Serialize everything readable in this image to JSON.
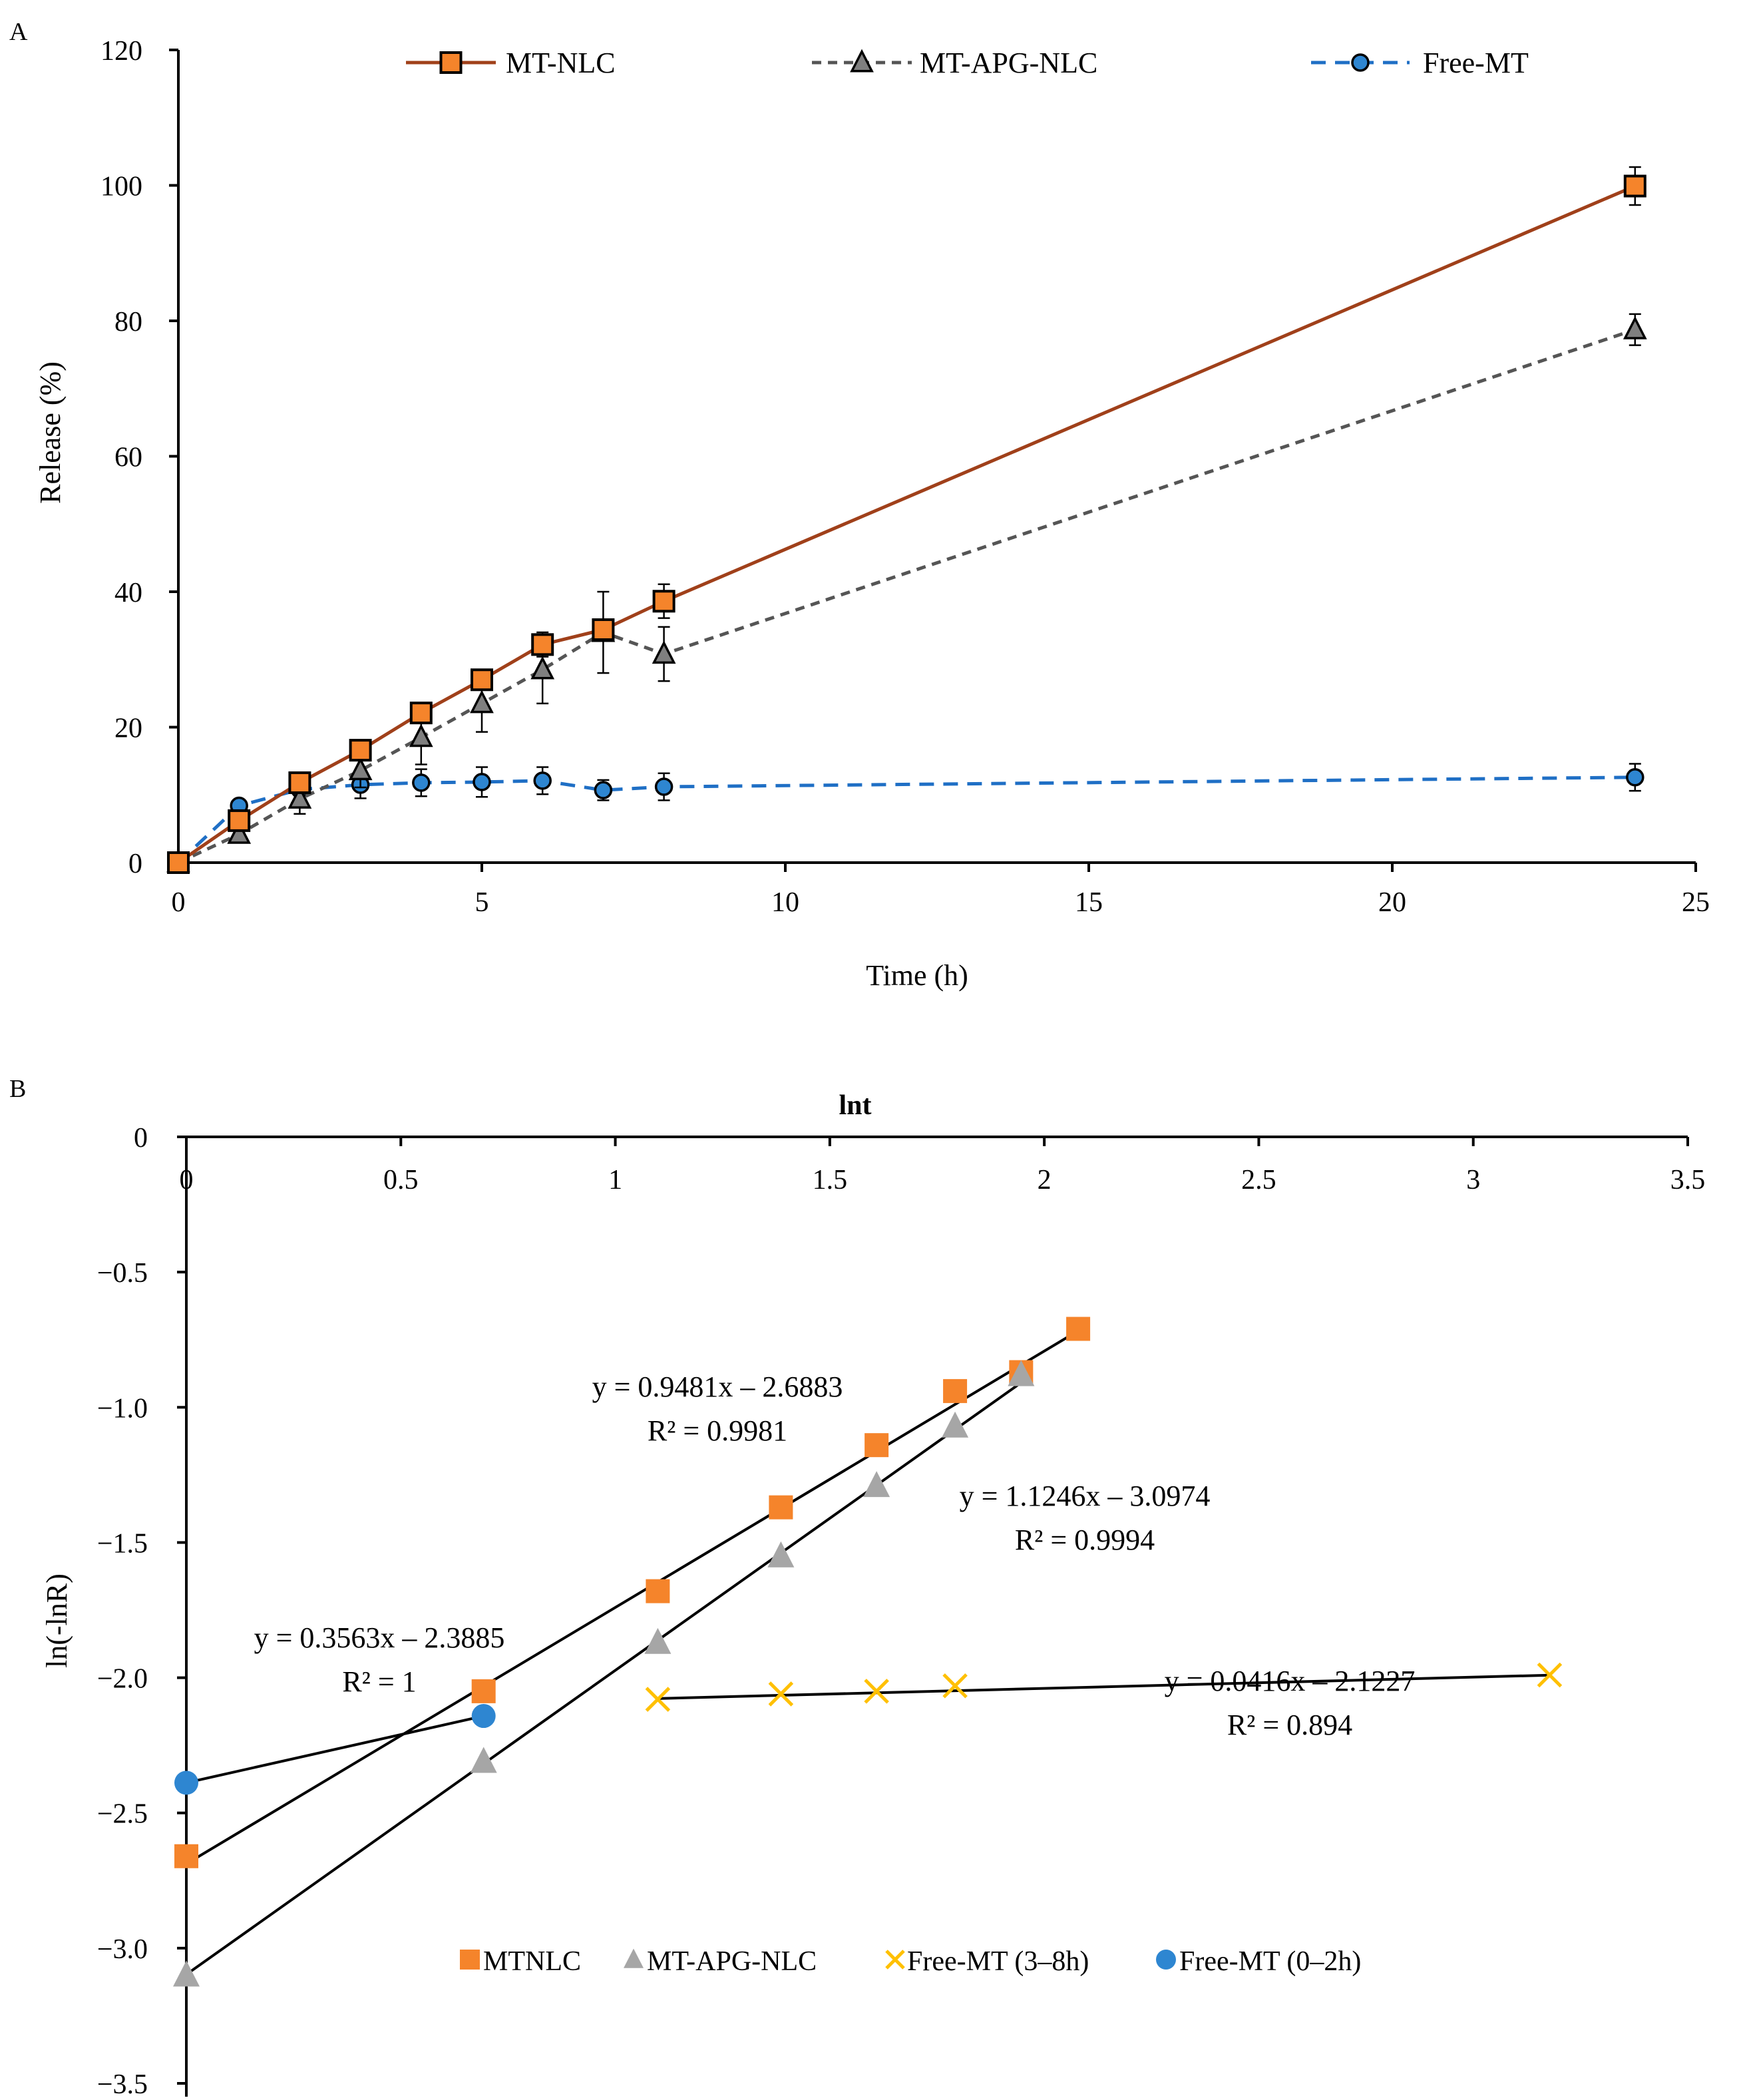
{
  "panels": {
    "a": {
      "label": "A"
    },
    "b": {
      "label": "B"
    }
  },
  "colors": {
    "mt_nlc_line": "#A0401A",
    "mt_nlc_marker": "#F5842B",
    "mt_apg_nlc_line": "#555555",
    "mt_apg_nlc_marker": "#7F7F7F",
    "free_mt_line": "#1F6FC5",
    "free_mt_marker": "#2E86D1",
    "b_mtnlc": "#F5842B",
    "b_apg": "#A6A6A6",
    "b_free_38": "#FFC000",
    "b_free_02": "#2E86D1",
    "axis": "#000000"
  },
  "chart_data": [
    {
      "type": "line",
      "title": "",
      "xlabel": "Time (h)",
      "ylabel": "Release (%)",
      "xlim": [
        0,
        25
      ],
      "ylim": [
        0,
        120
      ],
      "xticks": [
        "0",
        "5",
        "10",
        "15",
        "20",
        "25"
      ],
      "yticks": [
        "0",
        "20",
        "40",
        "60",
        "80",
        "100",
        "120"
      ],
      "legend_position": "top",
      "series": [
        {
          "name": "MT-NLC",
          "marker": "square",
          "style": "solid",
          "x": [
            0,
            1,
            2,
            3,
            4,
            5,
            6,
            7,
            8,
            24
          ],
          "y": [
            0,
            6.2,
            11.8,
            16.6,
            22.1,
            27.0,
            32.2,
            34.4,
            38.6,
            99.9
          ],
          "err": [
            0,
            1.0,
            1.0,
            1.2,
            1.5,
            1.0,
            1.8,
            1.5,
            2.5,
            2.8
          ]
        },
        {
          "name": "MT-APG-NLC",
          "marker": "triangle",
          "style": "dashed",
          "x": [
            0,
            1,
            2,
            3,
            4,
            5,
            6,
            7,
            8,
            24
          ],
          "y": [
            0,
            4.2,
            9.4,
            13.6,
            18.5,
            23.5,
            28.5,
            34.0,
            30.8,
            78.7
          ],
          "err": [
            0,
            1.0,
            2.2,
            2.5,
            4.0,
            4.2,
            5.0,
            6.0,
            4.0,
            2.3
          ]
        },
        {
          "name": "Free-MT",
          "marker": "circle",
          "style": "dashed",
          "x": [
            0,
            1,
            2,
            3,
            4,
            5,
            6,
            7,
            8,
            24
          ],
          "y": [
            0,
            8.4,
            10.8,
            11.5,
            11.8,
            11.9,
            12.1,
            10.7,
            11.2,
            12.6
          ],
          "err": [
            0,
            0.8,
            0.8,
            2.0,
            2.0,
            2.2,
            2.0,
            1.5,
            2.0,
            2.0
          ]
        }
      ]
    },
    {
      "type": "scatter",
      "title": "",
      "xlabel": "lnt",
      "ylabel": "ln(-lnR)",
      "xlim": [
        0,
        3.5
      ],
      "ylim": [
        -3.5,
        0
      ],
      "xticks": [
        "0",
        "0.5",
        "1",
        "1.5",
        "2",
        "2.5",
        "3",
        "3.5"
      ],
      "yticks": [
        "0",
        "−0.5",
        "−1.0",
        "−1.5",
        "−2.0",
        "−2.5",
        "−3.0",
        "−3.5"
      ],
      "legend_position": "bottom",
      "series": [
        {
          "name": "MTNLC",
          "marker": "square",
          "x": [
            0,
            0.693,
            1.099,
            1.386,
            1.609,
            1.792,
            1.946,
            2.079
          ],
          "y": [
            -2.66,
            -2.05,
            -1.68,
            -1.37,
            -1.14,
            -0.94,
            -0.87,
            -0.71
          ],
          "fit": {
            "slope": 0.9481,
            "intercept": -2.6883,
            "x_range": [
              0,
              2.079
            ]
          },
          "equation": "y = 0.9481x – 2.6883",
          "r2": "R² = 0.9981"
        },
        {
          "name": "MT-APG-NLC",
          "marker": "triangle",
          "x": [
            0,
            0.693,
            1.099,
            1.386,
            1.609,
            1.792,
            1.946
          ],
          "y": [
            -3.1,
            -2.31,
            -1.87,
            -1.55,
            -1.29,
            -1.07,
            -0.88
          ],
          "fit": {
            "slope": 1.1246,
            "intercept": -3.0974,
            "x_range": [
              0,
              1.946
            ]
          },
          "equation": "y = 1.1246x – 3.0974",
          "r2": "R² = 0.9994"
        },
        {
          "name": "Free-MT (3–8h)",
          "marker": "x",
          "x": [
            1.099,
            1.386,
            1.609,
            1.792,
            3.178
          ],
          "y": [
            -2.08,
            -2.06,
            -2.05,
            -2.03,
            -1.99
          ],
          "fit": {
            "slope": 0.0416,
            "intercept": -2.1227,
            "x_range": [
              1.099,
              3.178
            ]
          },
          "equation": "y = 0.0416x – 2.1227",
          "r2": "R² = 0.894"
        },
        {
          "name": "Free-MT (0–2h)",
          "marker": "circle",
          "x": [
            0,
            0.693
          ],
          "y": [
            -2.3885,
            -2.1415
          ],
          "fit": {
            "slope": 0.3563,
            "intercept": -2.3885,
            "x_range": [
              0,
              0.693
            ]
          },
          "equation": "y = 0.3563x – 2.3885",
          "r2": "R² = 1"
        }
      ]
    }
  ]
}
